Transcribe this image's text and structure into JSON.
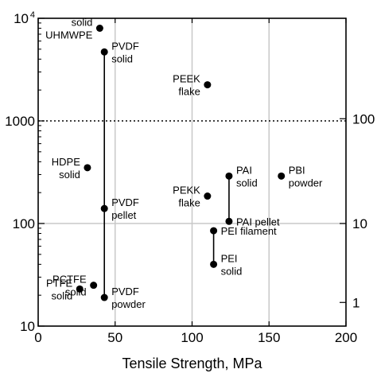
{
  "chart_data": {
    "type": "scatter",
    "xlabel": "Tensile Strength, MPa",
    "ylabel": "",
    "xlim": [
      0,
      200
    ],
    "ylim": [
      10,
      10000
    ],
    "y_scale": "log",
    "x_ticks": [
      "0",
      "50",
      "100",
      "150",
      "200"
    ],
    "y_ticks_left": [
      {
        "value": 10,
        "label": "10"
      },
      {
        "value": 100,
        "label": "100"
      },
      {
        "value": 1000,
        "label": "1000"
      },
      {
        "value": 10000,
        "label": "10",
        "sup": "4"
      }
    ],
    "y_ticks_right": [
      {
        "value": 17,
        "label": "1"
      },
      {
        "value": 100,
        "label": "10"
      },
      {
        "value": 1050,
        "label": "100"
      }
    ],
    "grid": {
      "x": [
        50,
        100,
        150
      ],
      "y": [
        100
      ]
    },
    "reference_line": {
      "y": 1000,
      "style": "dotted"
    },
    "points": [
      {
        "x": 40,
        "y": 8000,
        "label": [
          "solid",
          "UHMWPE"
        ],
        "anchor": "left"
      },
      {
        "x": 43,
        "y": 4700,
        "label": [
          "PVDF",
          "solid"
        ],
        "anchor": "right"
      },
      {
        "x": 110,
        "y": 2250,
        "label": [
          "PEEK",
          "flake"
        ],
        "anchor": "left"
      },
      {
        "x": 32,
        "y": 350,
        "label": [
          "HDPE",
          "solid"
        ],
        "anchor": "left"
      },
      {
        "x": 124,
        "y": 290,
        "label": [
          "PAI",
          "solid"
        ],
        "anchor": "right"
      },
      {
        "x": 158,
        "y": 290,
        "label": [
          "PBI",
          "powder"
        ],
        "anchor": "right"
      },
      {
        "x": 110,
        "y": 185,
        "label": [
          "PEKK",
          "flake"
        ],
        "anchor": "left"
      },
      {
        "x": 43,
        "y": 140,
        "label": [
          "PVDF",
          "pellet"
        ],
        "anchor": "right"
      },
      {
        "x": 124,
        "y": 105,
        "label": [
          "PAI pellet"
        ],
        "anchor": "right"
      },
      {
        "x": 114,
        "y": 85,
        "label": [
          "PEI filament"
        ],
        "anchor": "right"
      },
      {
        "x": 114,
        "y": 40,
        "label": [
          "PEI",
          "solid"
        ],
        "anchor": "right"
      },
      {
        "x": 36,
        "y": 25,
        "label": [
          "PCTFE",
          "solid"
        ],
        "anchor": "left"
      },
      {
        "x": 27,
        "y": 23,
        "label": [
          "PTFE",
          "solid"
        ],
        "anchor": "left"
      },
      {
        "x": 43,
        "y": 19,
        "label": [
          "PVDF",
          "powder"
        ],
        "anchor": "right"
      }
    ],
    "ranges": [
      {
        "x": 43,
        "y_from": 19,
        "y_to": 4700
      },
      {
        "x": 124,
        "y_from": 105,
        "y_to": 290
      },
      {
        "x": 114,
        "y_from": 40,
        "y_to": 85
      }
    ]
  }
}
